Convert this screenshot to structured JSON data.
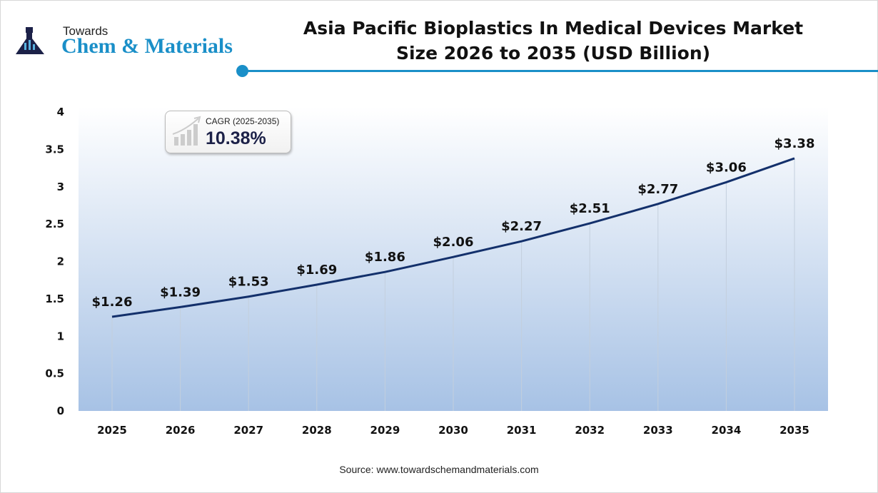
{
  "brand": {
    "towards": "Towards",
    "name": "Chem & Materials"
  },
  "chart_data": {
    "type": "line",
    "title": "Asia Pacific Bioplastics In Medical Devices Market Size 2026 to 2035 (USD Billion)",
    "title_lines": [
      "Asia Pacific Bioplastics In Medical Devices Market",
      "Size 2026 to 2035 (USD Billion)"
    ],
    "categories": [
      "2025",
      "2026",
      "2027",
      "2028",
      "2029",
      "2030",
      "2031",
      "2032",
      "2033",
      "2034",
      "2035"
    ],
    "values": [
      1.26,
      1.39,
      1.53,
      1.69,
      1.86,
      2.06,
      2.27,
      2.51,
      2.77,
      3.06,
      3.38
    ],
    "data_labels": [
      "$1.26",
      "$1.39",
      "$1.53",
      "$1.69",
      "$1.86",
      "$2.06",
      "$2.27",
      "$2.51",
      "$2.77",
      "$3.06",
      "$3.38"
    ],
    "yticks": [
      "0",
      "0.5",
      "1",
      "1.5",
      "2",
      "2.5",
      "3",
      "3.5",
      "4"
    ],
    "ylim": [
      0,
      4
    ],
    "xlabel": "",
    "ylabel": "",
    "grid": "vertical drop lines",
    "colors": {
      "line": "#13306b",
      "fill_top": "#ffffff",
      "fill_bottom": "#a7c2e5",
      "accent": "#1a8fc8"
    }
  },
  "cagr": {
    "label": "CAGR (2025-2035)",
    "value": "10.38%"
  },
  "source": "Source: www.towardschemandmaterials.com"
}
